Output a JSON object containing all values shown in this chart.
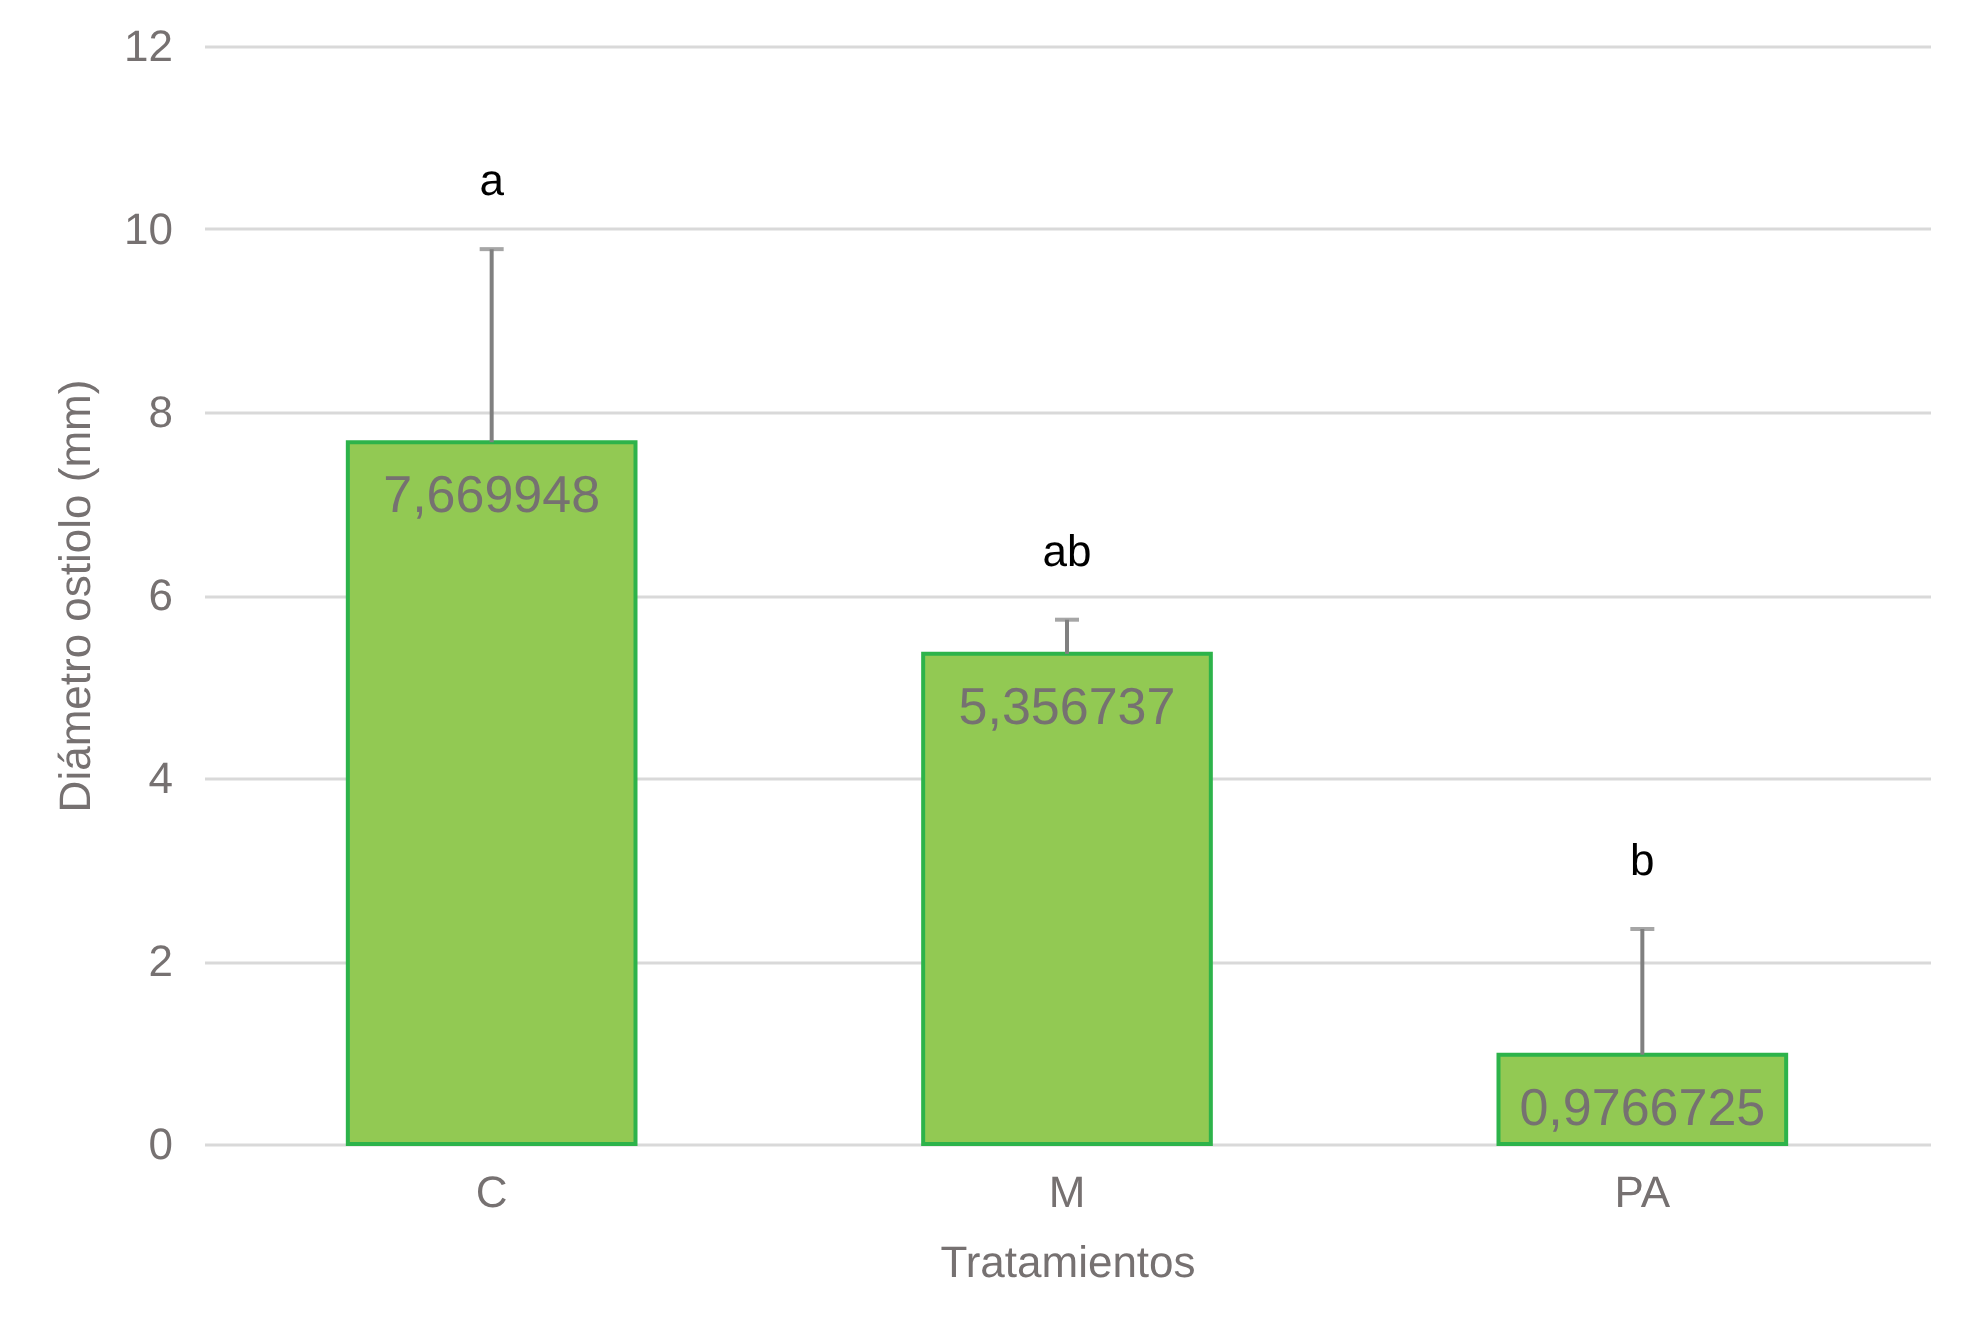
{
  "chart_data": {
    "type": "bar",
    "xlabel": "Tratamientos",
    "ylabel": "Diámetro ostiolo (mm)",
    "categories": [
      "C",
      "M",
      "PA"
    ],
    "values": [
      7.669948,
      5.356737,
      0.9766725
    ],
    "value_labels": [
      "7,669948",
      "5,356737",
      "0,9766725"
    ],
    "errors": [
      [
        7.669948,
        9.78
      ],
      [
        5.356737,
        5.73
      ],
      [
        0.9766725,
        2.35
      ]
    ],
    "color": "#92c953",
    "ylim": [
      0,
      12
    ],
    "yticks": [
      0,
      2,
      4,
      6,
      8,
      10,
      12
    ],
    "grid": "y",
    "annotations": [
      "a",
      "ab",
      "b"
    ]
  }
}
